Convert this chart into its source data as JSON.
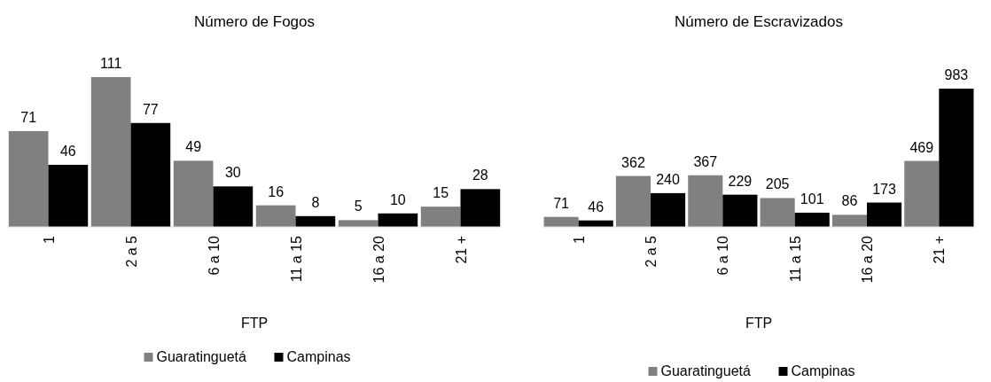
{
  "chart_data": [
    {
      "type": "bar",
      "title": "Número de Fogos",
      "xlabel": "FTP",
      "categories": [
        "1",
        "2 a 5",
        "6 a 10",
        "11 a 15",
        "16 a 20",
        "21 +"
      ],
      "series": [
        {
          "name": "Guaratinguetá",
          "color": "#808080",
          "values": [
            71,
            111,
            49,
            16,
            5,
            15
          ]
        },
        {
          "name": "Campinas",
          "color": "#000000",
          "values": [
            46,
            77,
            30,
            8,
            10,
            28
          ]
        }
      ],
      "data_labels": true,
      "legend": "bottom"
    },
    {
      "type": "bar",
      "title": "Número de Escravizados",
      "xlabel": "FTP",
      "categories": [
        "1",
        "2 a 5",
        "6 a 10",
        "11 a 15",
        "16 a 20",
        "21 +"
      ],
      "series": [
        {
          "name": "Guaratinguetá",
          "color": "#808080",
          "values": [
            71,
            362,
            367,
            205,
            86,
            469
          ]
        },
        {
          "name": "Campinas",
          "color": "#000000",
          "values": [
            46,
            240,
            229,
            101,
            173,
            983
          ]
        }
      ],
      "data_labels": true,
      "legend": "bottom"
    }
  ]
}
